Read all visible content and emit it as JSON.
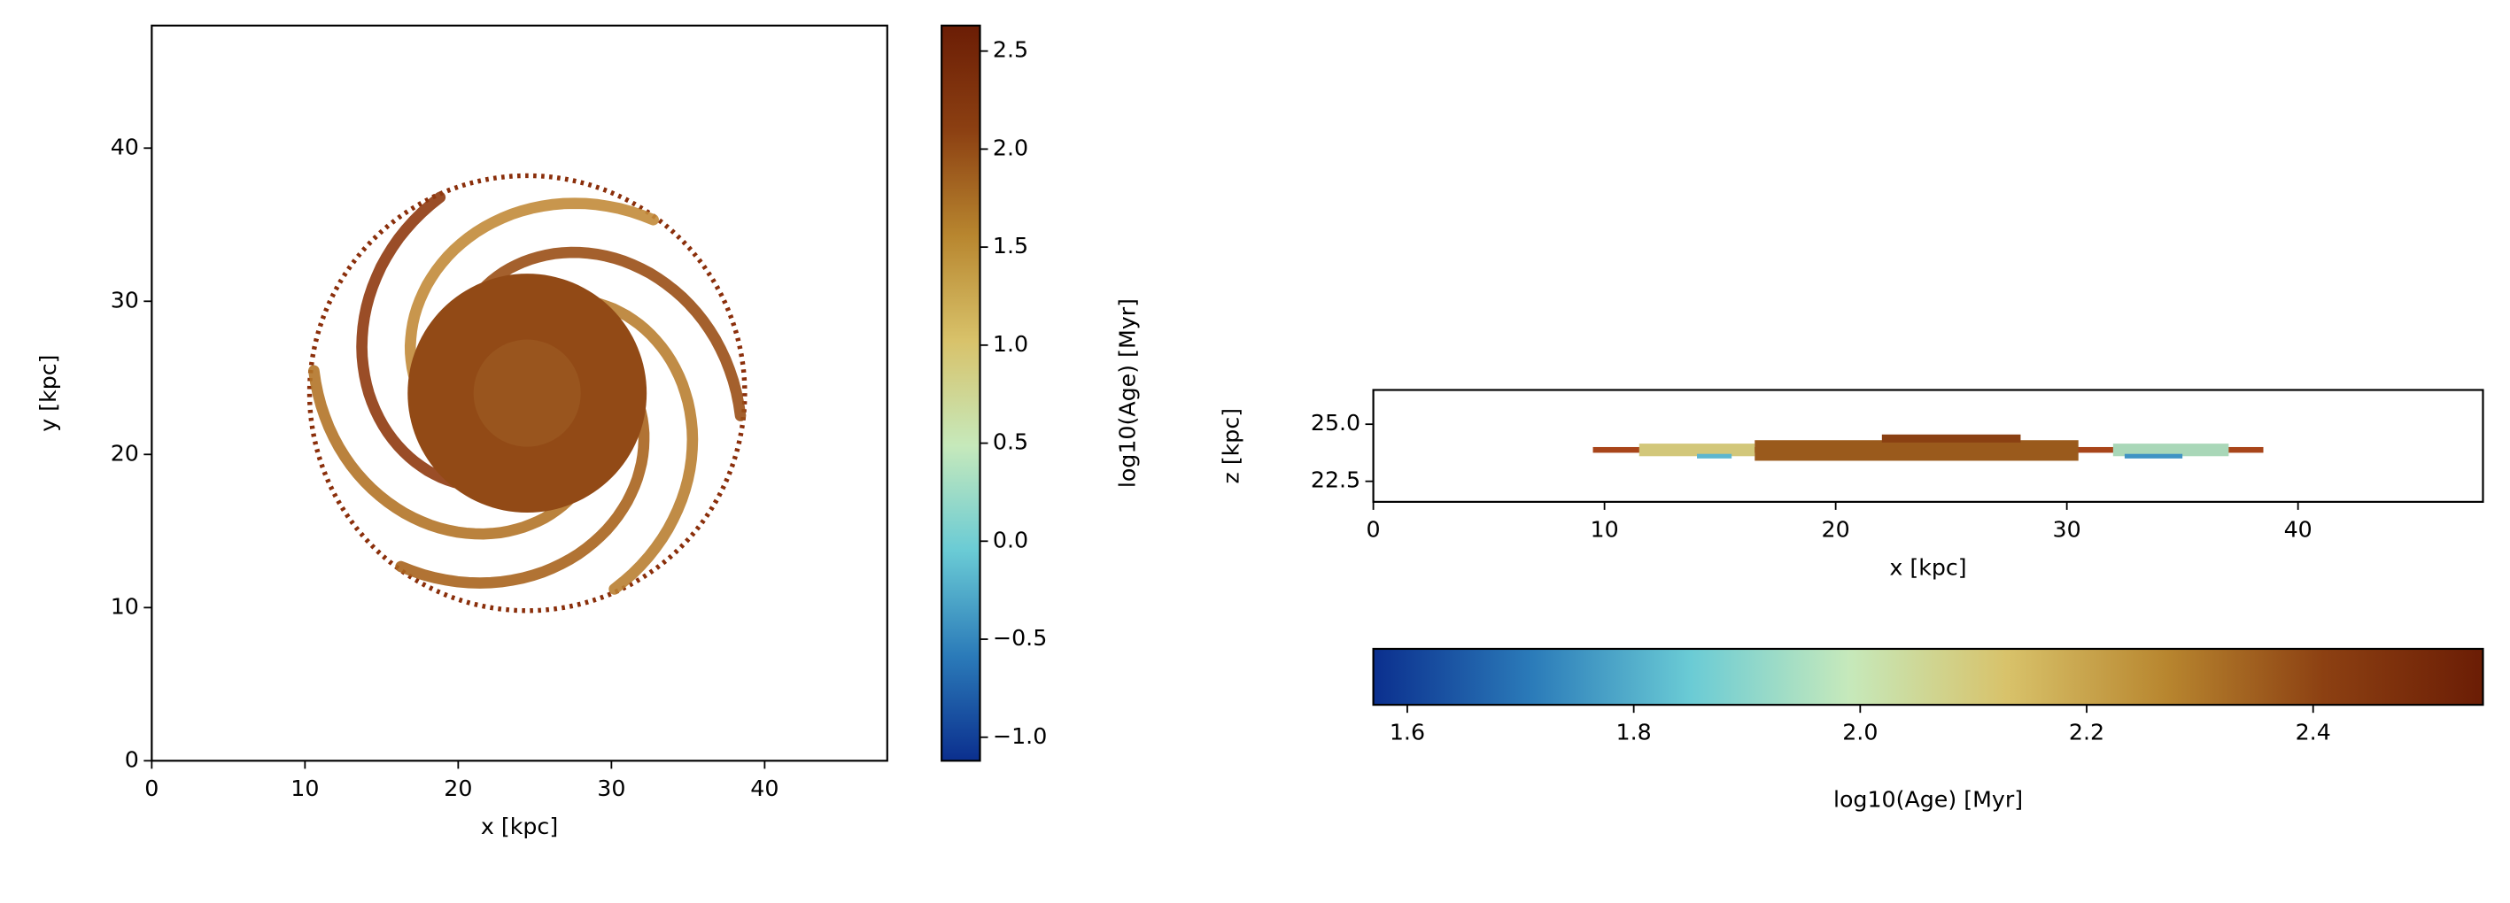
{
  "chart_data": [
    {
      "type": "heatmap",
      "xlabel": "x [kpc]",
      "ylabel": "y [kpc]",
      "xlim": [
        0,
        48
      ],
      "ylim": [
        0,
        48
      ],
      "xticks": [
        0,
        10,
        20,
        30,
        40
      ],
      "yticks": [
        0,
        10,
        20,
        30,
        40
      ],
      "colorbar": {
        "orientation": "vertical",
        "label": "log10(Age) [Myr]",
        "lim": [
          -1.12,
          2.63
        ],
        "ticks": [
          {
            "value": -1,
            "label": "−1.0"
          },
          {
            "value": -0.5,
            "label": "−0.5"
          },
          {
            "value": 0,
            "label": "0.0"
          },
          0.5,
          {
            "value": 1,
            "label": "1.0"
          },
          1.5,
          {
            "value": 2,
            "label": "2.0"
          },
          2.5
        ],
        "colormap": [
          "#0b2f8e",
          "#2b7bb9",
          "#6acbd5",
          "#c6e9bb",
          "#d8c26a",
          "#b8862f",
          "#8c4012",
          "#6b1d05"
        ]
      }
    },
    {
      "type": "heatmap",
      "xlabel": "x [kpc]",
      "ylabel": "z [kpc]",
      "xlim": [
        0,
        48
      ],
      "ylim": [
        21.6,
        26.5
      ],
      "xticks": [
        0,
        10,
        20,
        30,
        40
      ],
      "yticks": [
        22.5,
        {
          "value": 25,
          "label": "25.0"
        }
      ],
      "colorbar": {
        "orientation": "horizontal",
        "label": "log10(Age) [Myr]",
        "lim": [
          1.57,
          2.55
        ],
        "ticks": [
          1.6,
          1.8,
          {
            "value": 2,
            "label": "2.0"
          },
          2.2,
          2.4
        ],
        "colormap": [
          "#0b2f8e",
          "#2b7bb9",
          "#6acbd5",
          "#c6e9bb",
          "#d8c26a",
          "#b8862f",
          "#8c4012",
          "#6b1d05"
        ]
      }
    }
  ]
}
